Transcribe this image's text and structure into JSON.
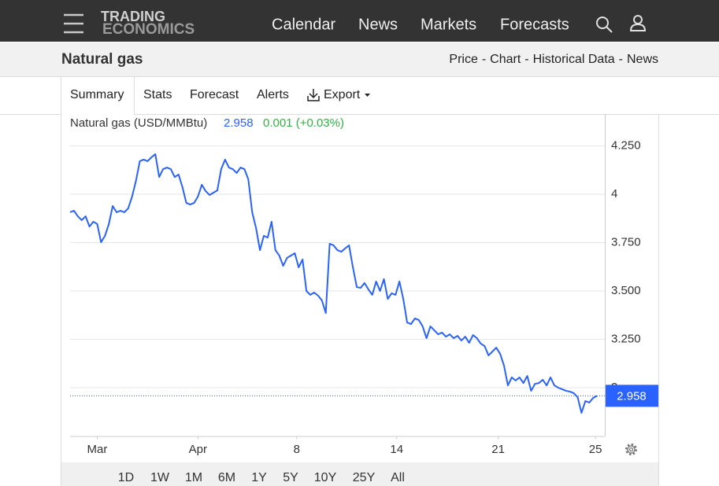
{
  "logo": [
    "TRADING",
    "ECONOMICS"
  ],
  "menu": [
    "Calendar",
    "News",
    "Markets",
    "Forecasts"
  ],
  "page_title": "Natural gas",
  "links": [
    "Price",
    "Chart",
    "Historical Data",
    "News"
  ],
  "link_separator": "-",
  "tabs": [
    "Summary",
    "Stats",
    "Forecast",
    "Alerts",
    "Export"
  ],
  "ranges": [
    "1D",
    "1W",
    "1M",
    "6M",
    "1Y",
    "5Y",
    "10Y",
    "25Y",
    "All"
  ],
  "selected_range": "1M",
  "chart_data": {
    "type": "line",
    "title": "Natural gas (USD/MMBtu)",
    "last_value": 2.958,
    "change": "0.001 (+0.03%)",
    "color": "#2962ff",
    "grid": true,
    "values": [
      3.907,
      3.915,
      3.886,
      3.866,
      3.886,
      3.833,
      3.858,
      3.846,
      3.752,
      3.785,
      3.846,
      3.939,
      3.907,
      3.915,
      3.907,
      3.927,
      3.988,
      4.069,
      4.171,
      4.179,
      4.171,
      4.191,
      4.207,
      4.089,
      4.13,
      4.138,
      4.13,
      4.089,
      4.102,
      4.037,
      3.955,
      3.947,
      3.955,
      3.988,
      4.049,
      4.016,
      3.996,
      4.008,
      4.02,
      4.13,
      4.179,
      4.138,
      4.13,
      4.11,
      4.138,
      4.13,
      4.077,
      3.907,
      3.825,
      3.711,
      3.785,
      3.776,
      3.858,
      3.711,
      3.683,
      3.63,
      3.671,
      3.683,
      3.695,
      3.622,
      3.663,
      3.5,
      3.48,
      3.492,
      3.476,
      3.451,
      3.386,
      3.744,
      3.736,
      3.711,
      3.703,
      3.72,
      3.736,
      3.622,
      3.52,
      3.516,
      3.541,
      3.508,
      3.48,
      3.549,
      3.5,
      3.561,
      3.459,
      3.488,
      3.48,
      3.549,
      3.459,
      3.337,
      3.329,
      3.358,
      3.35,
      3.317,
      3.256,
      3.317,
      3.297,
      3.276,
      3.285,
      3.264,
      3.276,
      3.256,
      3.268,
      3.244,
      3.264,
      3.232,
      3.272,
      3.256,
      3.228,
      3.215,
      3.167,
      3.187,
      3.207,
      3.175,
      3.114,
      3.012,
      3.053,
      3.037,
      3.053,
      3.024,
      3.061,
      2.984,
      3.02,
      3.024,
      3.041,
      3.012,
      3.053,
      3.012,
      3.0,
      2.992,
      2.984,
      2.98,
      2.972,
      2.951,
      2.87,
      2.931,
      2.923,
      2.947,
      2.958
    ],
    "xlim": [
      0,
      137
    ],
    "xticks": [
      {
        "value": 7,
        "label": "Mar"
      },
      {
        "value": 33,
        "label": "Apr"
      },
      {
        "value": 58.5,
        "label": "8"
      },
      {
        "value": 84.3,
        "label": "14"
      },
      {
        "value": 110.5,
        "label": "21"
      },
      {
        "value": 135.6,
        "label": "25"
      }
    ],
    "ylim": [
      2.75,
      4.4
    ],
    "yticks": [
      {
        "value": 4.25,
        "label": "4.250"
      },
      4,
      {
        "value": 3.75,
        "label": "3.750"
      },
      {
        "value": 3.5,
        "label": "3.500"
      },
      {
        "value": 3.25,
        "label": "3.250"
      },
      3
    ]
  }
}
